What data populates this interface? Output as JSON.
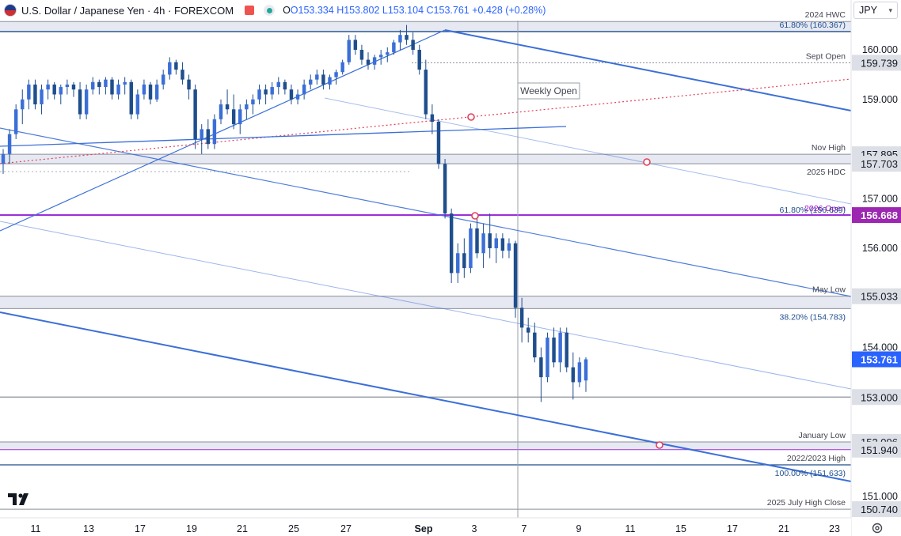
{
  "header": {
    "symbol": "U.S. Dollar / Japanese Yen · 4h · FOREXCOM",
    "open": "O153.334",
    "high": "H153.802",
    "low": "L153.104",
    "close": "C153.761",
    "change": "+0.428 (+0.28%)"
  },
  "currency": "JPY",
  "weekly_open_label": "Weekly Open",
  "colors": {
    "candle": "#1f4e8c",
    "trend": "#3b6fd8",
    "level": "#8a8f99",
    "zone_fill": "#e3e6f1",
    "magenta": "#9b30d9",
    "annotation_red": "#e0405a",
    "price_tag": "#2962ff",
    "label_dark": "#434651"
  },
  "chart_data": {
    "type": "candlestick",
    "symbol": "USDJPY",
    "timeframe": "4h",
    "ylim": [
      150.7,
      160.7
    ],
    "x_ticks": [
      "11",
      "13",
      "17",
      "19",
      "21",
      "25",
      "27",
      "Sep",
      "3",
      "7",
      "9",
      "11",
      "15",
      "17",
      "21",
      "23"
    ],
    "y_ticks": [
      "151.000",
      "154.000",
      "156.000",
      "157.000",
      "159.000",
      "160.000"
    ],
    "price_labels": [
      {
        "text": "159.739",
        "value": 159.739,
        "style": "gray"
      },
      {
        "text": "157.895",
        "value": 157.895,
        "style": "gray"
      },
      {
        "text": "157.703",
        "value": 157.703,
        "style": "gray"
      },
      {
        "text": "156.668",
        "value": 156.668,
        "style": "magenta"
      },
      {
        "text": "155.033",
        "value": 155.033,
        "style": "gray"
      },
      {
        "text": "153.761",
        "value": 153.761,
        "style": "blue"
      },
      {
        "text": "153.000",
        "value": 153.0,
        "style": "gray"
      },
      {
        "text": "152.096",
        "value": 152.096,
        "style": "gray"
      },
      {
        "text": "151.940",
        "value": 151.94,
        "style": "gray"
      },
      {
        "text": "150.740",
        "value": 150.74,
        "style": "gray"
      }
    ],
    "levels": [
      {
        "label": "2024 HWC",
        "value": 160.57,
        "style": "gray"
      },
      {
        "label": "61.80% (160.367)",
        "value": 160.367,
        "style": "blue"
      },
      {
        "label": "Sept Open",
        "value": 159.739,
        "style": "gray"
      },
      {
        "label": "Nov High",
        "value": 157.895,
        "style": "gray"
      },
      {
        "label": "2025 HDC",
        "value": 157.703,
        "style": "gray"
      },
      {
        "label": "2026 Open",
        "value": 156.668,
        "style": "magenta"
      },
      {
        "label": "61.80% (156.639)",
        "value": 156.639,
        "style": "blue"
      },
      {
        "label": "May Low",
        "value": 155.033,
        "style": "gray"
      },
      {
        "label": "38.20% (154.783)",
        "value": 154.783,
        "style": "blue"
      },
      {
        "label": "January Low",
        "value": 152.096,
        "style": "gray"
      },
      {
        "label": "2022/2023 High",
        "value": 151.94,
        "style": "gray"
      },
      {
        "label": "100.00% (151.633)",
        "value": 151.633,
        "style": "blue"
      },
      {
        "label": "2025 July High Close",
        "value": 150.74,
        "style": "gray"
      }
    ],
    "candles": [
      [
        157.7,
        158.0,
        157.5,
        157.9
      ],
      [
        157.9,
        158.4,
        157.7,
        158.3
      ],
      [
        158.3,
        158.9,
        158.2,
        158.8
      ],
      [
        158.8,
        159.2,
        158.5,
        159.0
      ],
      [
        159.0,
        159.4,
        158.8,
        159.3
      ],
      [
        159.3,
        159.4,
        158.8,
        158.9
      ],
      [
        158.9,
        159.3,
        158.7,
        159.2
      ],
      [
        159.2,
        159.4,
        159.0,
        159.3
      ],
      [
        159.3,
        159.35,
        159.0,
        159.1
      ],
      [
        159.1,
        159.3,
        158.9,
        159.25
      ],
      [
        159.25,
        159.4,
        159.1,
        159.3
      ],
      [
        159.3,
        159.35,
        159.05,
        159.2
      ],
      [
        159.2,
        159.35,
        158.6,
        158.7
      ],
      [
        158.7,
        159.3,
        158.6,
        159.2
      ],
      [
        159.2,
        159.45,
        159.1,
        159.35
      ],
      [
        159.35,
        159.4,
        159.1,
        159.25
      ],
      [
        159.25,
        159.45,
        159.1,
        159.4
      ],
      [
        159.4,
        159.45,
        159.0,
        159.1
      ],
      [
        159.1,
        159.4,
        159.0,
        159.3
      ],
      [
        159.3,
        159.45,
        159.1,
        159.35
      ],
      [
        159.35,
        159.4,
        158.6,
        158.7
      ],
      [
        158.7,
        159.2,
        158.6,
        159.1
      ],
      [
        159.1,
        159.4,
        159.0,
        159.3
      ],
      [
        159.3,
        159.35,
        158.9,
        159.0
      ],
      [
        159.0,
        159.4,
        158.95,
        159.3
      ],
      [
        159.3,
        159.6,
        159.2,
        159.5
      ],
      [
        159.5,
        159.85,
        159.4,
        159.75
      ],
      [
        159.75,
        159.8,
        159.5,
        159.6
      ],
      [
        159.6,
        159.75,
        159.3,
        159.4
      ],
      [
        159.4,
        159.5,
        159.0,
        159.2
      ],
      [
        159.2,
        159.3,
        158.0,
        158.2
      ],
      [
        158.2,
        158.5,
        157.9,
        158.4
      ],
      [
        158.4,
        158.6,
        158.0,
        158.1
      ],
      [
        158.1,
        158.7,
        158.0,
        158.6
      ],
      [
        158.6,
        159.0,
        158.5,
        158.9
      ],
      [
        158.9,
        159.2,
        158.7,
        158.8
      ],
      [
        158.8,
        159.1,
        158.4,
        158.5
      ],
      [
        158.5,
        158.9,
        158.3,
        158.8
      ],
      [
        158.8,
        159.0,
        158.6,
        158.9
      ],
      [
        158.9,
        159.1,
        158.7,
        159.0
      ],
      [
        159.0,
        159.3,
        158.9,
        159.2
      ],
      [
        159.2,
        159.3,
        158.9,
        159.1
      ],
      [
        159.1,
        159.35,
        159.0,
        159.25
      ],
      [
        159.25,
        159.45,
        159.1,
        159.35
      ],
      [
        159.35,
        159.4,
        159.1,
        159.2
      ],
      [
        159.2,
        159.3,
        158.9,
        159.0
      ],
      [
        159.0,
        159.2,
        158.9,
        159.1
      ],
      [
        159.1,
        159.4,
        159.0,
        159.3
      ],
      [
        159.3,
        159.5,
        159.2,
        159.4
      ],
      [
        159.4,
        159.6,
        159.3,
        159.5
      ],
      [
        159.5,
        159.6,
        159.2,
        159.3
      ],
      [
        159.3,
        159.5,
        159.2,
        159.45
      ],
      [
        159.45,
        159.6,
        159.3,
        159.55
      ],
      [
        159.55,
        159.8,
        159.5,
        159.75
      ],
      [
        159.75,
        160.3,
        159.7,
        160.2
      ],
      [
        160.2,
        160.3,
        159.9,
        160.0
      ],
      [
        160.0,
        160.1,
        159.7,
        159.8
      ],
      [
        159.8,
        159.95,
        159.6,
        159.7
      ],
      [
        159.7,
        159.9,
        159.6,
        159.85
      ],
      [
        159.85,
        160.0,
        159.7,
        159.9
      ],
      [
        159.9,
        160.05,
        159.75,
        159.95
      ],
      [
        159.95,
        160.2,
        159.9,
        160.15
      ],
      [
        160.15,
        160.4,
        160.0,
        160.3
      ],
      [
        160.3,
        160.5,
        160.1,
        160.2
      ],
      [
        160.2,
        160.35,
        159.9,
        160.0
      ],
      [
        160.0,
        160.1,
        159.5,
        159.6
      ],
      [
        159.6,
        159.8,
        158.6,
        158.7
      ],
      [
        158.7,
        158.9,
        158.3,
        158.55
      ],
      [
        158.55,
        158.6,
        157.6,
        157.7
      ],
      [
        157.7,
        157.8,
        156.6,
        156.7
      ],
      [
        156.7,
        156.8,
        155.3,
        155.5
      ],
      [
        155.5,
        156.1,
        155.3,
        155.9
      ],
      [
        155.9,
        156.2,
        155.4,
        155.6
      ],
      [
        155.6,
        156.5,
        155.5,
        156.4
      ],
      [
        156.4,
        156.6,
        155.8,
        155.9
      ],
      [
        155.9,
        156.5,
        155.6,
        156.3
      ],
      [
        156.3,
        156.7,
        155.8,
        156.0
      ],
      [
        156.0,
        156.3,
        155.7,
        156.2
      ],
      [
        156.2,
        156.3,
        155.8,
        155.95
      ],
      [
        155.95,
        156.2,
        155.8,
        156.1
      ],
      [
        156.1,
        156.15,
        154.6,
        154.8
      ],
      [
        154.8,
        155.0,
        154.1,
        154.4
      ],
      [
        154.4,
        154.6,
        154.1,
        154.3
      ],
      [
        154.3,
        154.5,
        153.7,
        153.8
      ],
      [
        153.8,
        154.0,
        152.9,
        153.4
      ],
      [
        153.4,
        154.3,
        153.3,
        154.2
      ],
      [
        154.2,
        154.4,
        153.6,
        153.7
      ],
      [
        153.7,
        154.4,
        153.5,
        154.3
      ],
      [
        154.3,
        154.4,
        153.5,
        153.6
      ],
      [
        153.6,
        153.9,
        152.95,
        153.3
      ],
      [
        153.3,
        153.8,
        153.2,
        153.7
      ],
      [
        153.334,
        153.802,
        153.104,
        153.761
      ]
    ]
  }
}
